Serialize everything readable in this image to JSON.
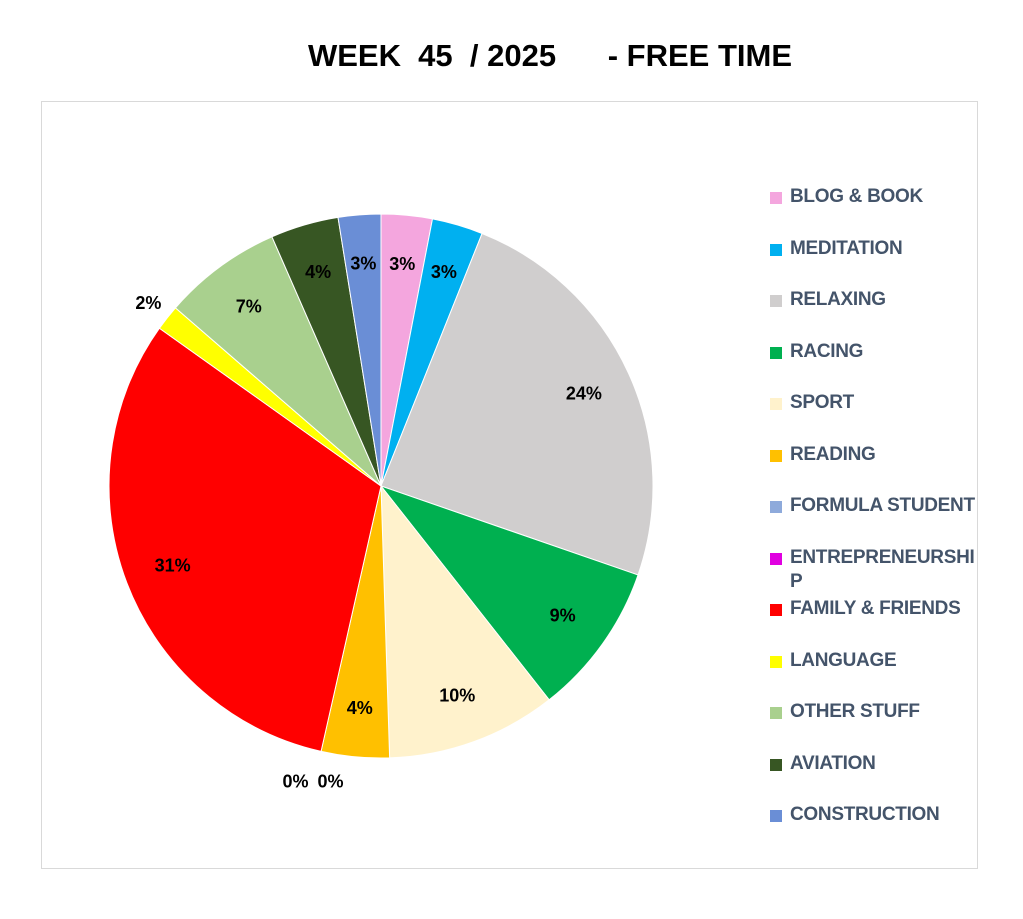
{
  "chart_data": {
    "type": "pie",
    "title": "WEEK  45  / 2025      - FREE TIME",
    "legend_position": "right",
    "slices": [
      {
        "label": "BLOG & BOOK",
        "value": 3,
        "display": "3%",
        "color": "#f4a6de"
      },
      {
        "label": "MEDITATION",
        "value": 3,
        "display": "3%",
        "color": "#00b0f0"
      },
      {
        "label": "RELAXING",
        "value": 24,
        "display": "24%",
        "color": "#d0cece"
      },
      {
        "label": "RACING",
        "value": 9,
        "display": "9%",
        "color": "#00b050"
      },
      {
        "label": "SPORT",
        "value": 10,
        "display": "10%",
        "color": "#fff2cc"
      },
      {
        "label": "READING",
        "value": 4,
        "display": "4%",
        "color": "#ffc000"
      },
      {
        "label": "FORMULA STUDENT",
        "value": 0,
        "display": "0%",
        "color": "#8eaadb"
      },
      {
        "label": "ENTREPRENEURSHIP",
        "value": 0,
        "display": "0%",
        "color": "#e000e0"
      },
      {
        "label": "FAMILY & FRIENDS",
        "value": 31,
        "display": "31%",
        "color": "#ff0000"
      },
      {
        "label": "LANGUAGE",
        "value": 1.5,
        "display": "2%",
        "color": "#ffff00"
      },
      {
        "label": "OTHER STUFF",
        "value": 7,
        "display": "7%",
        "color": "#a9d08e"
      },
      {
        "label": "AVIATION",
        "value": 4,
        "display": "4%",
        "color": "#375623"
      },
      {
        "label": "CONSTRUCTION",
        "value": 2.5,
        "display": "3%",
        "color": "#6a8ed6"
      }
    ]
  }
}
